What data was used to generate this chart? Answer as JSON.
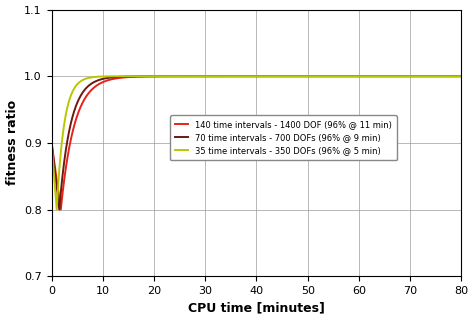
{
  "xlabel": "CPU time [minutes]",
  "ylabel": "fitness ratio",
  "xlim": [
    0,
    80
  ],
  "ylim": [
    0.7,
    1.1
  ],
  "xticks": [
    0,
    10,
    20,
    30,
    40,
    50,
    60,
    70,
    80
  ],
  "yticks": [
    0.7,
    0.8,
    0.9,
    1.0,
    1.1
  ],
  "legend_labels": [
    "140 time intervals - 1400 DOF (96% @ 11 min)",
    "70 time intervals - 700 DOFs (96% @ 9 min)",
    "35 time intervals - 350 DOFs (96% @ 5 min)"
  ],
  "line_colors": [
    "#e8221a",
    "#6b1a10",
    "#b8c800"
  ],
  "background_color": "#ffffff",
  "grid_color": "#999999",
  "curve_red": {
    "dip_x": 1.8,
    "dip_y": 0.8,
    "rise_rate": 0.38
  },
  "curve_dark": {
    "dip_x": 1.5,
    "dip_y": 0.8,
    "rise_rate": 0.46
  },
  "curve_green": {
    "dip_x": 1.0,
    "dip_y": 0.8,
    "rise_rate": 0.7
  }
}
